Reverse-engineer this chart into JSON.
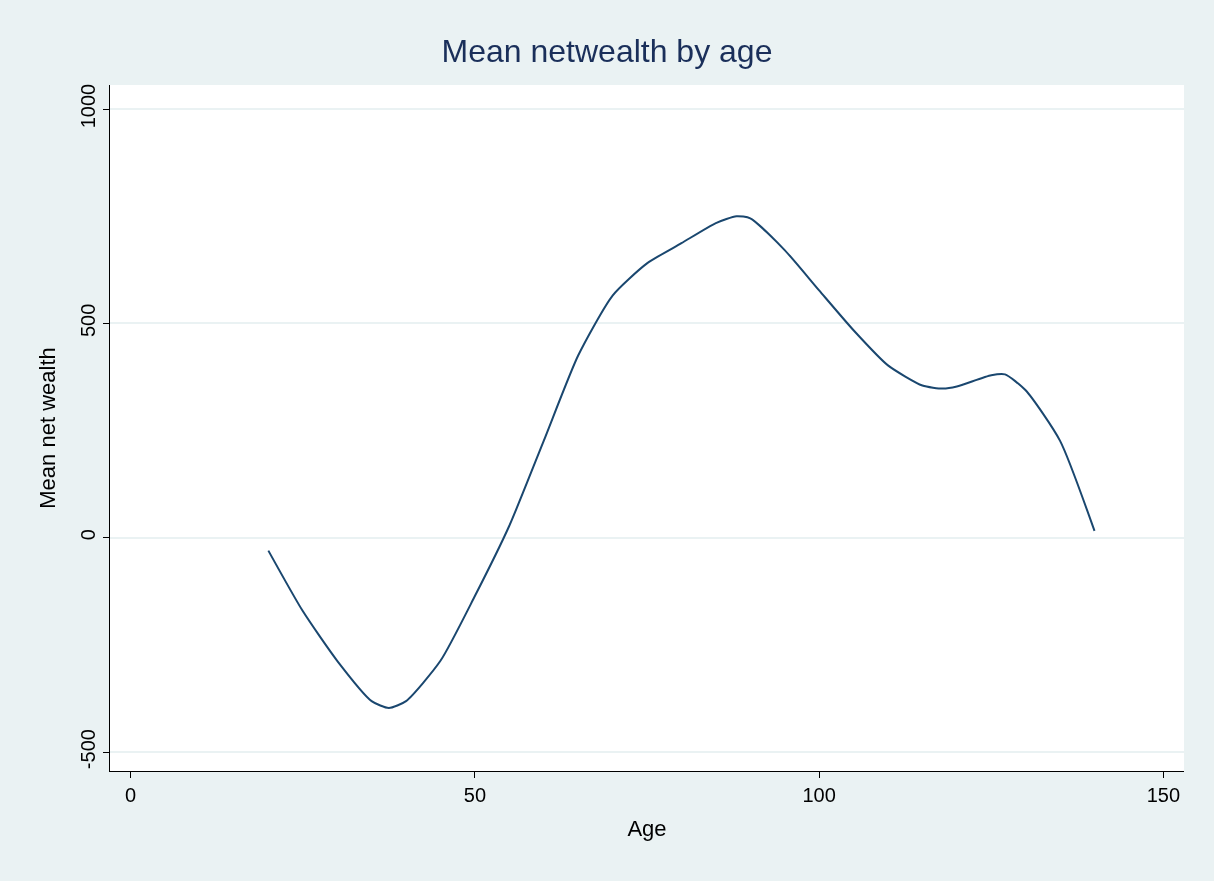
{
  "chart_data": {
    "type": "line",
    "title": "Mean netwealth by age",
    "xlabel": "Age",
    "ylabel": "Mean net wealth",
    "x": [
      20,
      25,
      30,
      35,
      37.5,
      40,
      45,
      50,
      55,
      60,
      65,
      70,
      75,
      80,
      85,
      88,
      90,
      95,
      100,
      105,
      110,
      115,
      118,
      120,
      125,
      127,
      130,
      135,
      140
    ],
    "series": [
      {
        "color": "#1a476f",
        "values": [
          -30,
          -171,
          -287,
          -381,
          -397,
          -381,
          -287,
          -136,
          28,
          226,
          425,
          565,
          640,
          687,
          734,
          750,
          745,
          671,
          577,
          484,
          402,
          355,
          348,
          353,
          379,
          381,
          344,
          226,
          16
        ]
      }
    ],
    "xlim": [
      -3,
      153
    ],
    "xticks": [
      0,
      50,
      100,
      150
    ],
    "ylim": [
      -544,
      1056
    ],
    "yticks": [
      -500,
      0,
      500,
      1000
    ],
    "grid": "y",
    "marker": "none",
    "line_style": "solid"
  }
}
